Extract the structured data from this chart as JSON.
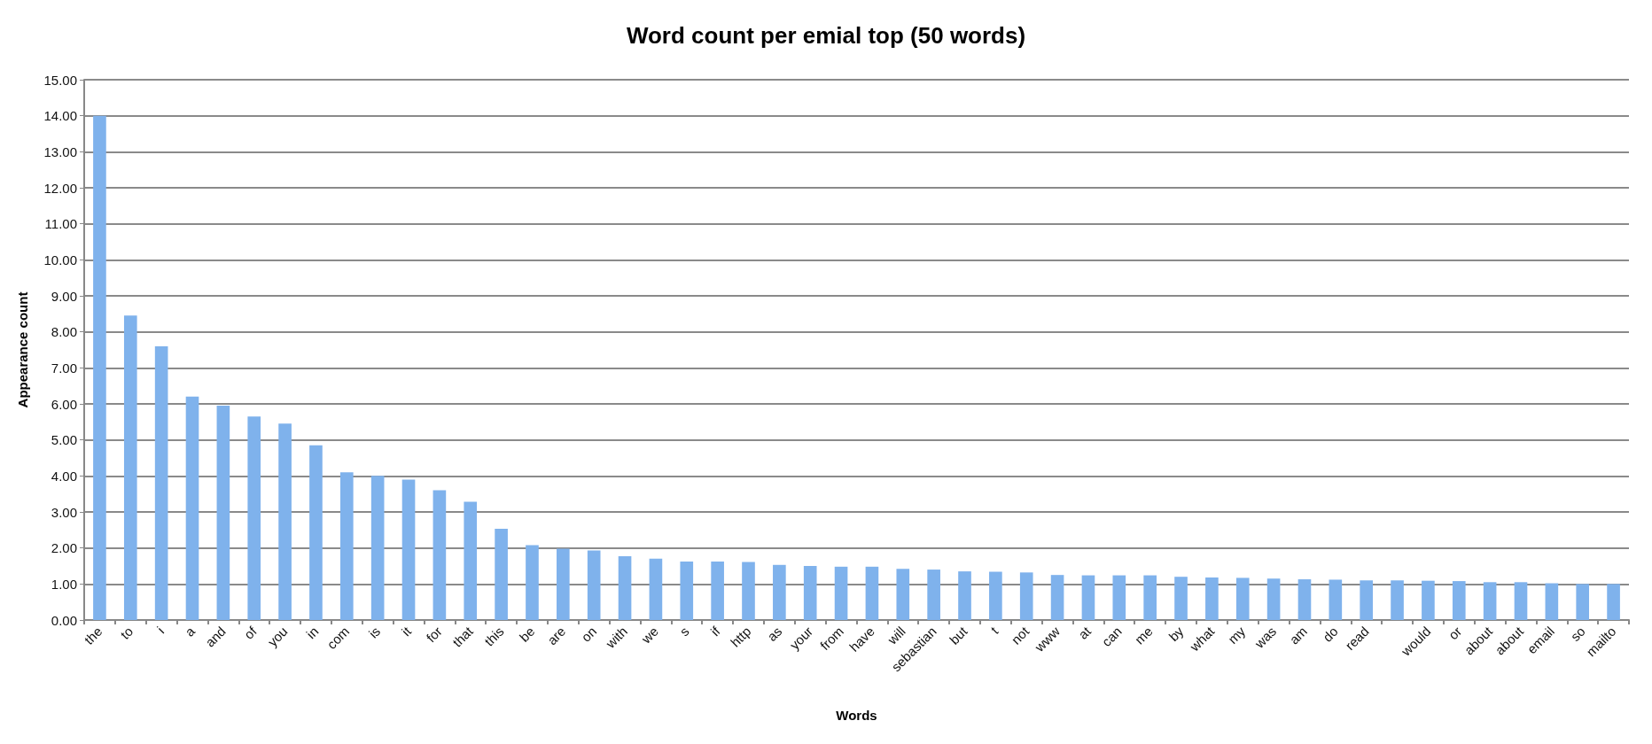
{
  "chart_data": {
    "type": "bar",
    "title": "Word count per emial top (50 words)",
    "xlabel": "Words",
    "ylabel": "Appearance count",
    "categories": [
      "the",
      "to",
      "i",
      "a",
      "and",
      "of",
      "you",
      "in",
      "com",
      "is",
      "it",
      "for",
      "that",
      "this",
      "be",
      "are",
      "on",
      "with",
      "we",
      "s",
      "if",
      "http",
      "as",
      "your",
      "from",
      "have",
      "will",
      "sebastian",
      "but",
      "t",
      "not",
      "www",
      "at",
      "can",
      "me",
      "by",
      "what",
      "my",
      "was",
      "am",
      "do",
      "read",
      null,
      "would",
      "or",
      "about",
      "about",
      "email",
      "so",
      "mailto"
    ],
    "values": [
      14.0,
      8.45,
      7.6,
      6.2,
      5.95,
      5.65,
      5.45,
      4.85,
      4.1,
      4.0,
      3.9,
      3.6,
      3.28,
      2.53,
      2.08,
      1.98,
      1.93,
      1.77,
      1.7,
      1.62,
      1.62,
      1.61,
      1.53,
      1.5,
      1.48,
      1.48,
      1.42,
      1.4,
      1.35,
      1.34,
      1.32,
      1.25,
      1.24,
      1.24,
      1.24,
      1.2,
      1.18,
      1.17,
      1.15,
      1.13,
      1.12,
      1.1,
      1.1,
      1.09,
      1.08,
      1.05,
      1.05,
      1.02,
      1.0,
      1.0
    ],
    "color": "#7fb2ec",
    "ylim": [
      0,
      15
    ],
    "yticks": [
      {
        "value": 0,
        "label": "0.00"
      },
      {
        "value": 1,
        "label": "1.00"
      },
      {
        "value": 2,
        "label": "2.00"
      },
      {
        "value": 3,
        "label": "3.00"
      },
      {
        "value": 4,
        "label": "4.00"
      },
      {
        "value": 5,
        "label": "5.00"
      },
      {
        "value": 6,
        "label": "6.00"
      },
      {
        "value": 7,
        "label": "7.00"
      },
      {
        "value": 8,
        "label": "8.00"
      },
      {
        "value": 9,
        "label": "9.00"
      },
      {
        "value": 10,
        "label": "10.00"
      },
      {
        "value": 11,
        "label": "11.00"
      },
      {
        "value": 12,
        "label": "12.00"
      },
      {
        "value": 13,
        "label": "13.00"
      },
      {
        "value": 14,
        "label": "14.00"
      },
      {
        "value": 15,
        "label": "15.00"
      }
    ],
    "grid": "y"
  }
}
